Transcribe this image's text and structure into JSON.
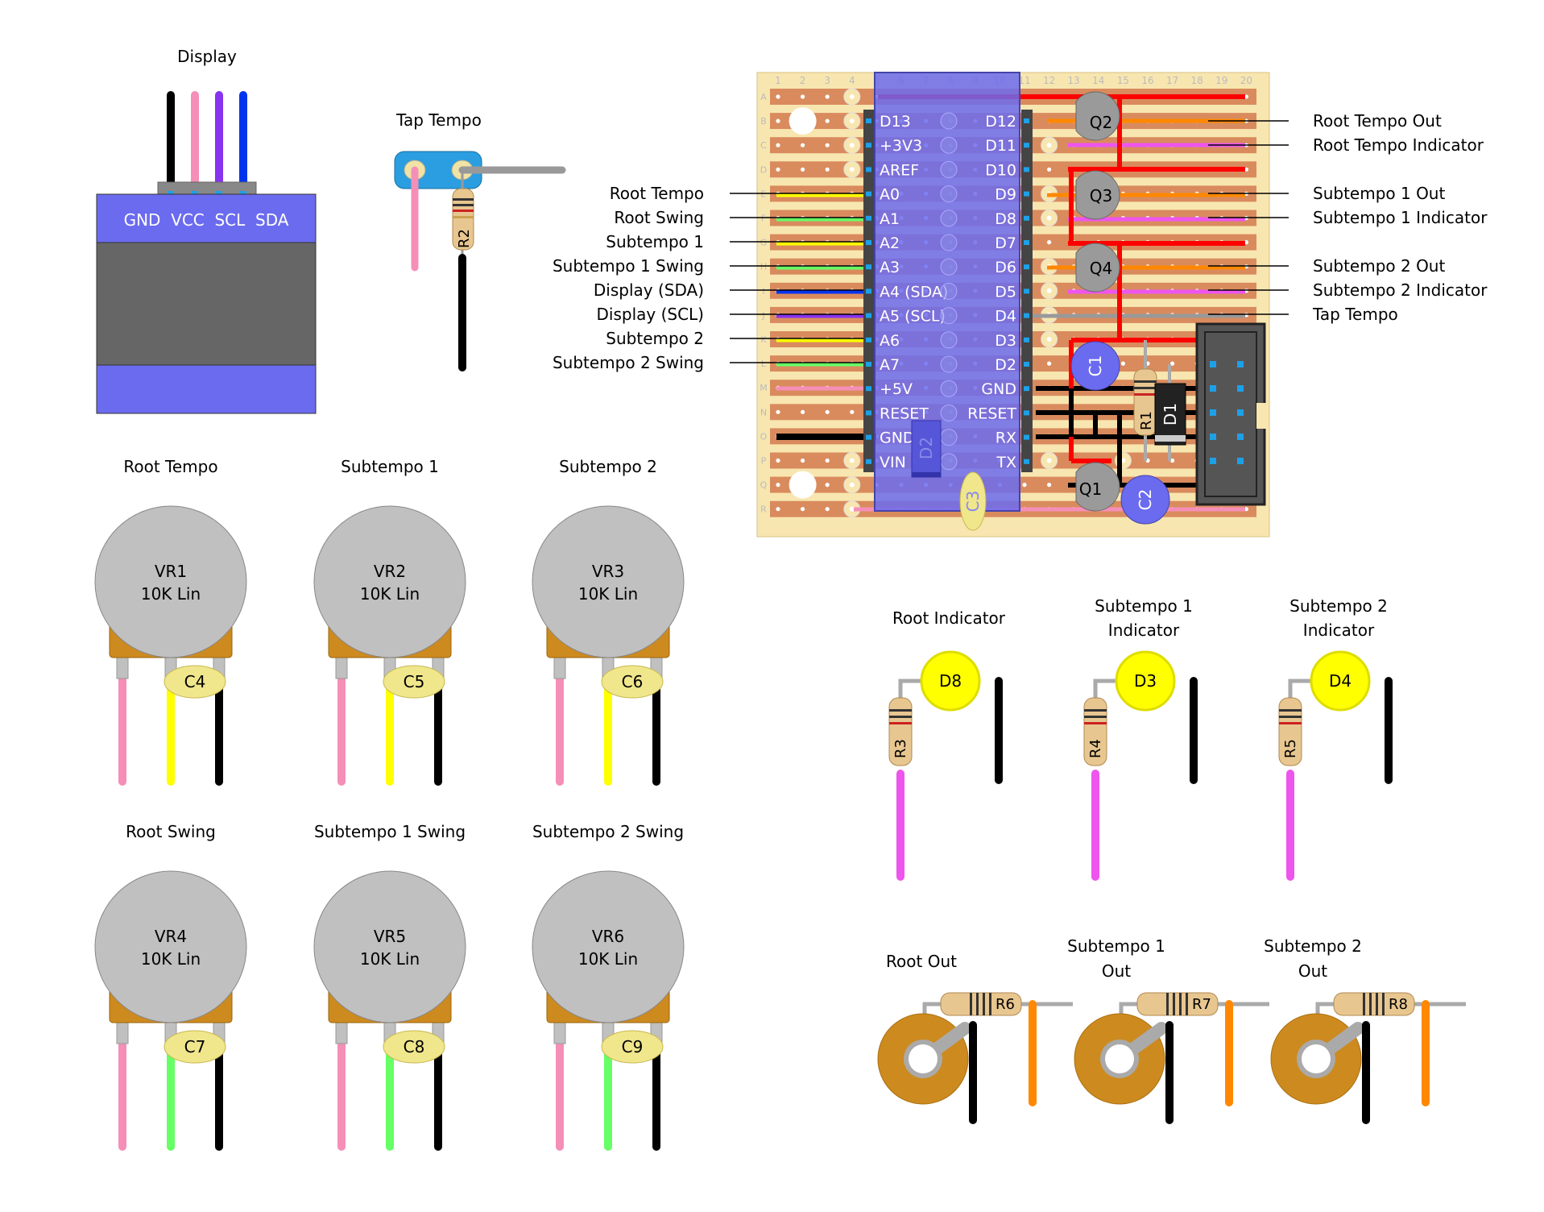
{
  "colors": {
    "stripboard_bg": "#f8e6b0",
    "copper_strip": "#d98b5e",
    "arduino_body": "#6b6bef",
    "display_header": "#6b6bef",
    "display_body": "#666666",
    "pot_body": "#c0c0c0",
    "pot_base": "#cd8a1e",
    "led_yellow": "#ffff00",
    "capacitor_blue": "#6b6bef",
    "capacitor_ceramic": "#f0e68c",
    "transistor_gray": "#9a9a9a",
    "jack_orange": "#cd8a1e",
    "wire_red": "#ff0000",
    "wire_black": "#000000",
    "wire_pink": "#f58fb8",
    "wire_magenta": "#ee55ee",
    "wire_yellow": "#ffff00",
    "wire_green": "#66ff66",
    "wire_blue": "#0033ee",
    "wire_purple": "#8833ee",
    "wire_orange": "#ff8800",
    "wire_gray": "#999999",
    "icsp_gray": "#555555"
  },
  "display": {
    "title": "Display",
    "pins": "GND  VCC  SCL  SDA"
  },
  "tap_tempo": {
    "title": "Tap Tempo",
    "resistor": "R2"
  },
  "stripboard": {
    "col_labels": [
      "1",
      "2",
      "3",
      "4",
      "5",
      "6",
      "7",
      "8",
      "9",
      "10",
      "11",
      "12",
      "13",
      "14",
      "15",
      "16",
      "17",
      "18",
      "19",
      "20"
    ],
    "row_labels": [
      "A",
      "B",
      "C",
      "D",
      "E",
      "F",
      "G",
      "H",
      "I",
      "J",
      "K",
      "L",
      "M",
      "N",
      "O",
      "P",
      "Q",
      "R"
    ],
    "arduino_left_pins": [
      "D13",
      "+3V3",
      "AREF",
      "A0",
      "A1",
      "A2",
      "A3",
      "A4 (SDA)",
      "A5 (SCL)",
      "A6",
      "A7",
      "+5V",
      "RESET",
      "GND",
      "VIN"
    ],
    "arduino_right_pins": [
      "D12",
      "D11",
      "D10",
      "D9",
      "D8",
      "D7",
      "D6",
      "D5",
      "D4",
      "D3",
      "D2",
      "GND",
      "RESET",
      "RX",
      "TX"
    ],
    "components": {
      "q1": "Q1",
      "q2": "Q2",
      "q3": "Q3",
      "q4": "Q4",
      "c1": "C1",
      "c2": "C2",
      "c3": "C3",
      "d1": "D1",
      "d2": "D2",
      "r1": "R1"
    }
  },
  "left_labels": [
    "Root Tempo",
    "Root Swing",
    "Subtempo 1",
    "Subtempo 1 Swing",
    "Display (SDA)",
    "Display (SCL)",
    "Subtempo 2",
    "Subtempo 2 Swing"
  ],
  "right_labels": [
    "Root Tempo Out",
    "Root Tempo Indicator",
    "Subtempo 1 Out",
    "Subtempo 1 Indicator",
    "Subtempo 2 Out",
    "Subtempo 2 Indicator",
    "Tap Tempo"
  ],
  "pots": [
    {
      "title": "Root Tempo",
      "id": "VR1",
      "value": "10K Lin",
      "cap": "C4"
    },
    {
      "title": "Subtempo 1",
      "id": "VR2",
      "value": "10K Lin",
      "cap": "C5"
    },
    {
      "title": "Subtempo 2",
      "id": "VR3",
      "value": "10K Lin",
      "cap": "C6"
    },
    {
      "title": "Root Swing",
      "id": "VR4",
      "value": "10K Lin",
      "cap": "C7"
    },
    {
      "title": "Subtempo 1 Swing",
      "id": "VR5",
      "value": "10K Lin",
      "cap": "C8"
    },
    {
      "title": "Subtempo 2 Swing",
      "id": "VR6",
      "value": "10K Lin",
      "cap": "C9"
    }
  ],
  "indicators": [
    {
      "title_line1": "Root Indicator",
      "title_line2": "",
      "led": "D8",
      "resistor": "R3"
    },
    {
      "title_line1": "Subtempo 1",
      "title_line2": "Indicator",
      "led": "D3",
      "resistor": "R4"
    },
    {
      "title_line1": "Subtempo 2",
      "title_line2": "Indicator",
      "led": "D4",
      "resistor": "R5"
    }
  ],
  "outputs": [
    {
      "title_line1": "Root Out",
      "title_line2": "",
      "resistor": "R6"
    },
    {
      "title_line1": "Subtempo 1",
      "title_line2": "Out",
      "resistor": "R7"
    },
    {
      "title_line1": "Subtempo 2",
      "title_line2": "Out",
      "resistor": "R8"
    }
  ]
}
